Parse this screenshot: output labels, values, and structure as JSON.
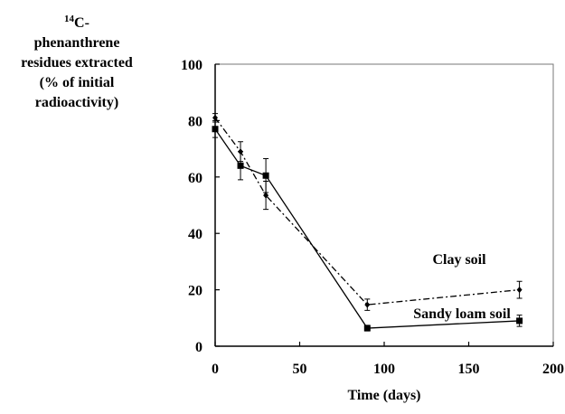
{
  "chart_data": {
    "type": "line",
    "y_label": {
      "superscript": "14",
      "lines": [
        "C-",
        "phenanthrene",
        "residues extracted",
        "(% of initial",
        "radioactivity)"
      ]
    },
    "x_label": "Time (days)",
    "xlim": [
      0,
      200
    ],
    "xticks": [
      0,
      50,
      100,
      150,
      200
    ],
    "ylim": [
      0,
      100
    ],
    "yticks": [
      0,
      20,
      40,
      60,
      80,
      100
    ],
    "x": [
      0,
      15,
      30,
      90,
      180
    ],
    "series": [
      {
        "name": "Clay soil",
        "color": "#000000",
        "marker": "diamond",
        "dash": "dash-dot",
        "values": [
          81,
          69,
          53.5,
          14.7,
          20
        ],
        "errors": [
          1.5,
          3.5,
          5,
          2,
          3
        ]
      },
      {
        "name": "Sandy loam soil",
        "color": "#000000",
        "marker": "square",
        "dash": "solid",
        "values": [
          77,
          64,
          60.5,
          6.4,
          9
        ],
        "errors": [
          3,
          5,
          6,
          1,
          2
        ]
      }
    ]
  }
}
